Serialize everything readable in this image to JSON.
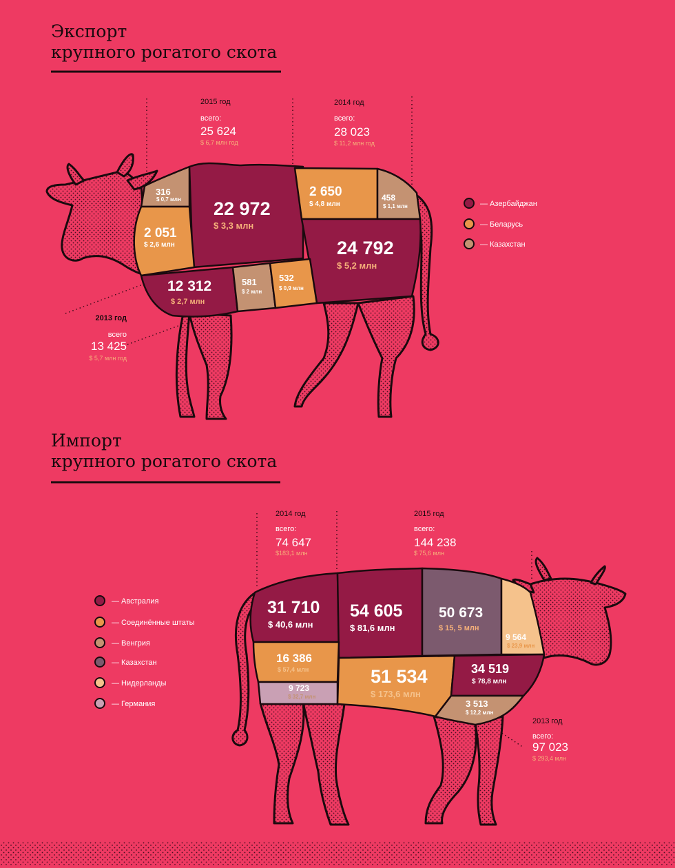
{
  "colors": {
    "background": "#ee3a62",
    "azerbaijan": "#941a45",
    "belarus": "#e8964a",
    "kazakhstan_export": "#c49272",
    "australia": "#941a45",
    "usa": "#e8964a",
    "hungary": "#c49272",
    "kazakhstan_import": "#7c5a6e",
    "netherlands": "#f5c28c",
    "germany": "#c9a0b4"
  },
  "export": {
    "title_line1": "Экспорт",
    "title_line2": "крупного рогатого скота",
    "year2015": {
      "year": "2015 год",
      "total_label": "всего:",
      "total": "25 624",
      "money": "$ 6,7 млн год"
    },
    "year2014": {
      "year": "2014 год",
      "total_label": "всего:",
      "total": "28 023",
      "money": "$ 11,2 млн год"
    },
    "year2013": {
      "year": "2013 год",
      "total_label": "всего",
      "total": "13 425",
      "money": "$ 5,7 млн год"
    },
    "cells": {
      "k316": {
        "value": "316",
        "money": "$ 0,7 млн"
      },
      "a22972": {
        "value": "22 972",
        "money": "$ 3,3 млн"
      },
      "b2650": {
        "value": "2 650",
        "money": "$ 4,8 млн"
      },
      "k458": {
        "value": "458",
        "money": "$ 1,1 млн"
      },
      "b2051": {
        "value": "2 051",
        "money": "$ 2,6 млн"
      },
      "a24792": {
        "value": "24 792",
        "money": "$ 5,2 млн"
      },
      "a12312": {
        "value": "12 312",
        "money": "$ 2,7 млн"
      },
      "k581": {
        "value": "581",
        "money": "$ 2 млн"
      },
      "b532": {
        "value": "532",
        "money": "$ 0,9 млн"
      }
    },
    "legend": [
      {
        "label": "— Азербайджан"
      },
      {
        "label": "— Беларусь"
      },
      {
        "label": "— Казахстан"
      }
    ]
  },
  "import": {
    "title_line1": "Импорт",
    "title_line2": "крупного рогатого скота",
    "year2014": {
      "year": "2014 год",
      "total_label": "всего:",
      "total": "74 647",
      "money": "$183,1 млн"
    },
    "year2015": {
      "year": "2015 год",
      "total_label": "всего:",
      "total": "144 238",
      "money": "$ 75,6 млн"
    },
    "year2013": {
      "year": "2013 год",
      "total_label": "всего:",
      "total": "97 023",
      "money": "$ 293,4 млн"
    },
    "cells": {
      "au31710": {
        "value": "31 710",
        "money": "$ 40,6 млн"
      },
      "au54605": {
        "value": "54 605",
        "money": "$ 81,6 млн"
      },
      "kz50673": {
        "value": "50 673",
        "money": "$ 15, 5 млн"
      },
      "nl9564": {
        "value": "9 564",
        "money": "$ 23,9 млн"
      },
      "us16386": {
        "value": "16 386",
        "money": "$ 57,4 млн"
      },
      "de9723": {
        "value": "9 723",
        "money": "$ 32,7 млн"
      },
      "us51534": {
        "value": "51 534",
        "money": "$ 173,6 млн"
      },
      "au34519": {
        "value": "34 519",
        "money": "$ 78,8 млн"
      },
      "hu3513": {
        "value": "3 513",
        "money": "$ 12,2 млн"
      }
    },
    "legend": [
      {
        "label": "— Австралия"
      },
      {
        "label": "— Соединённые штаты"
      },
      {
        "label": "— Венгрия"
      },
      {
        "label": "— Казахстан"
      },
      {
        "label": "— Нидерланды"
      },
      {
        "label": "— Германия"
      }
    ]
  }
}
